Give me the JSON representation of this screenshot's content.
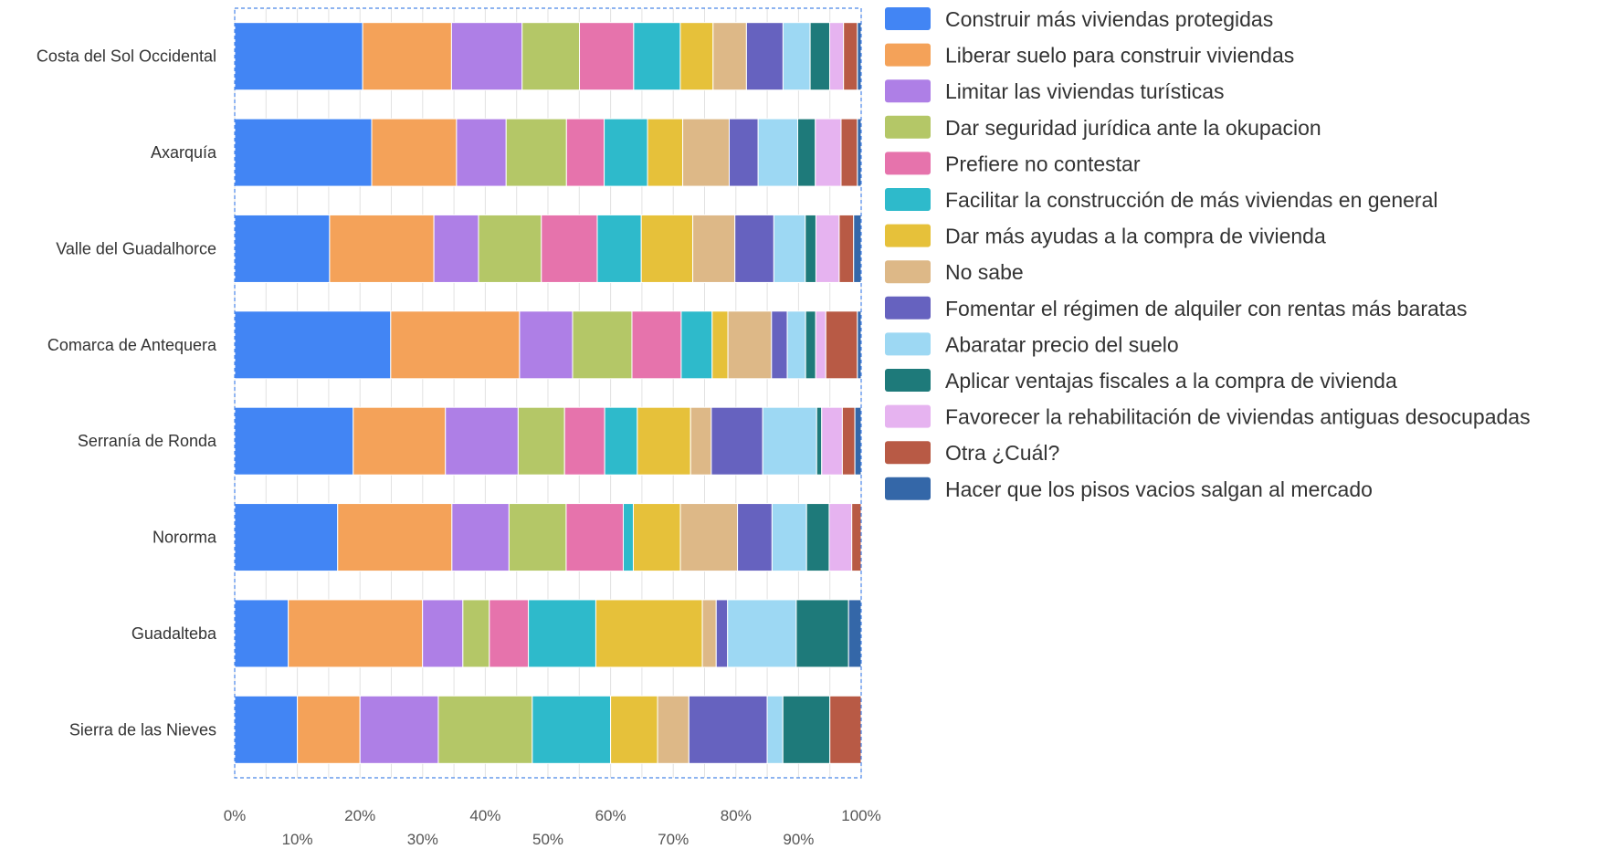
{
  "chart_data": {
    "type": "bar",
    "orientation": "horizontal",
    "stacked": true,
    "normalized": true,
    "title": "",
    "xlabel": "",
    "ylabel": "",
    "xlim": [
      0,
      100
    ],
    "x_ticks_upper": [
      "0%",
      "20%",
      "40%",
      "60%",
      "80%",
      "100%"
    ],
    "x_ticks_lower": [
      "10%",
      "30%",
      "50%",
      "70%",
      "90%"
    ],
    "grid": true,
    "legend_position": "right",
    "categories": [
      "Costa del Sol Occidental",
      "Axarquía",
      "Valle del Guadalhorce",
      "Comarca de Antequera",
      "Serranía de Ronda",
      "Nororma",
      "Guadalteba",
      "Sierra de las Nieves"
    ],
    "series": [
      {
        "name": "Construir más viviendas protegidas",
        "color": "#4285F4",
        "values": [
          20.3,
          21.8,
          15.1,
          24.7,
          18.9,
          16.4,
          8.5,
          10.0
        ]
      },
      {
        "name": "Liberar suelo para construir viviendas",
        "color": "#F4A259",
        "values": [
          14.1,
          13.5,
          16.6,
          20.4,
          14.7,
          18.2,
          21.3,
          10.0
        ]
      },
      {
        "name": "Limitar las viviendas turísticas",
        "color": "#AE7FE6",
        "values": [
          11.2,
          7.9,
          7.1,
          8.4,
          11.6,
          9.1,
          6.4,
          12.5
        ]
      },
      {
        "name": "Dar seguridad jurídica ante la okupacion",
        "color": "#B4C767",
        "values": [
          9.1,
          9.6,
          10.0,
          9.4,
          7.4,
          9.1,
          4.2,
          15.0
        ]
      },
      {
        "name": "Prefiere no contestar",
        "color": "#E673AC",
        "values": [
          8.6,
          6.0,
          8.9,
          7.8,
          6.4,
          9.1,
          6.2,
          0.0
        ]
      },
      {
        "name": "Facilitar la construcción de más viviendas en general",
        "color": "#2EBACB",
        "values": [
          7.4,
          6.9,
          7.0,
          4.9,
          5.2,
          1.6,
          10.7,
          12.5
        ]
      },
      {
        "name": "Dar más ayudas a la compra de vivienda",
        "color": "#E6C13A",
        "values": [
          5.2,
          5.6,
          8.2,
          2.5,
          8.5,
          7.5,
          16.9,
          7.5
        ]
      },
      {
        "name": "No sabe",
        "color": "#DDB887",
        "values": [
          5.3,
          7.4,
          6.7,
          6.9,
          3.3,
          9.1,
          2.2,
          5.0
        ]
      },
      {
        "name": "Fomentar el régimen de alquiler con rentas más baratas",
        "color": "#6662BF",
        "values": [
          5.8,
          4.6,
          6.2,
          2.5,
          8.2,
          5.5,
          1.8,
          12.5
        ]
      },
      {
        "name": "Abaratar precio del suelo",
        "color": "#9DD8F3",
        "values": [
          4.3,
          6.3,
          5.0,
          2.9,
          8.6,
          5.5,
          10.9,
          2.5
        ]
      },
      {
        "name": "Aplicar ventajas fiscales a la compra de vivienda",
        "color": "#1E7A7A",
        "values": [
          3.1,
          2.8,
          1.7,
          1.6,
          0.8,
          3.6,
          8.3,
          7.5
        ]
      },
      {
        "name": "Favorecer la rehabilitación de viviendas antiguas desocupadas",
        "color": "#E6B3F0",
        "values": [
          2.2,
          4.1,
          3.7,
          1.6,
          3.3,
          3.6,
          0.0,
          0.0
        ]
      },
      {
        "name": "Otra ¿Cuál?",
        "color": "#B85A45",
        "values": [
          2.2,
          2.6,
          2.3,
          5.0,
          2.0,
          1.5,
          0.0,
          5.0
        ]
      },
      {
        "name": "Hacer que los pisos vacios salgan al mercado",
        "color": "#3467A8",
        "values": [
          0.6,
          0.6,
          1.2,
          0.6,
          1.0,
          0.0,
          2.0,
          0.0
        ]
      }
    ]
  }
}
